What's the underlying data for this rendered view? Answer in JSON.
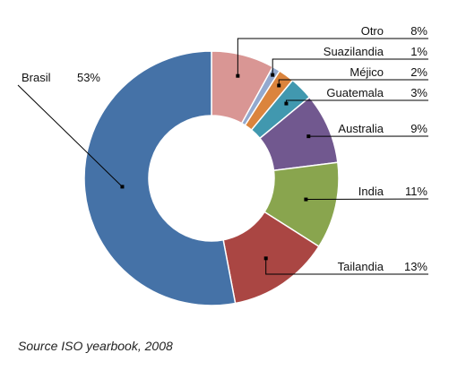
{
  "chart_data": {
    "type": "pie",
    "variant": "donut",
    "slices": [
      {
        "label": "Brasil",
        "percent_label": "53%",
        "value": 53,
        "color": "#4572A7"
      },
      {
        "label": "Tailandia",
        "percent_label": "13%",
        "value": 13,
        "color": "#AA4643"
      },
      {
        "label": "India",
        "percent_label": "11%",
        "value": 11,
        "color": "#89A54E"
      },
      {
        "label": "Australia",
        "percent_label": "9%",
        "value": 9,
        "color": "#71588F"
      },
      {
        "label": "Guatemala",
        "percent_label": "3%",
        "value": 3,
        "color": "#4198AF"
      },
      {
        "label": "Méjico",
        "percent_label": "2%",
        "value": 2,
        "color": "#DB843D"
      },
      {
        "label": "Suazilandia",
        "percent_label": "1%",
        "value": 1,
        "color": "#93A9CF"
      },
      {
        "label": "Otro",
        "percent_label": "8%",
        "value": 8,
        "color": "#D99694"
      }
    ]
  },
  "source_note": "Source ISO yearbook, 2008"
}
